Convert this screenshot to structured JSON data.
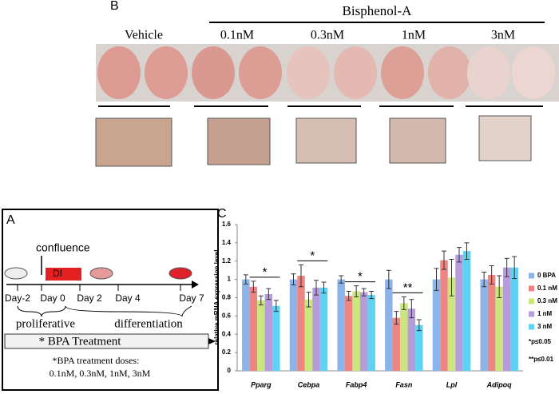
{
  "panel_b": {
    "label": "B",
    "group": "Bisphenol-A",
    "conditions": [
      "Vehicle",
      "0.1nM",
      "0.3nM",
      "1nM",
      "3nM"
    ]
  },
  "panel_a": {
    "label": "A",
    "confluence": "confluence",
    "di": "DI",
    "days": [
      "Day-2",
      "Day 0",
      "Day 2",
      "Day 4",
      "Day 7"
    ],
    "phases": [
      "proliferative",
      "differentiation"
    ],
    "treatment": "* BPA Treatment",
    "note_title": "*BPA treatment doses:",
    "note_doses": "0.1nM, 0.3nM, 1nM, 3nM"
  },
  "chart_data": {
    "type": "bar",
    "panel_label": "C",
    "y_label": "relative mRNA expression level",
    "categories": [
      "Pparg",
      "Cebpa",
      "Fabp4",
      "Fasn",
      "Lpl",
      "Adipoq"
    ],
    "series": [
      {
        "name": "0 BPA",
        "color": "#8db4e8",
        "values": [
          1.0,
          1.0,
          1.0,
          1.0,
          1.0,
          1.0
        ],
        "errors": [
          0.05,
          0.06,
          0.04,
          0.1,
          0.12,
          0.08
        ]
      },
      {
        "name": "0.1 nM",
        "color": "#ef8582",
        "values": [
          0.92,
          1.04,
          0.82,
          0.58,
          1.21,
          1.05
        ],
        "errors": [
          0.06,
          0.12,
          0.05,
          0.07,
          0.1,
          0.1
        ]
      },
      {
        "name": "0.3 nM",
        "color": "#cbe67c",
        "values": [
          0.77,
          0.78,
          0.87,
          0.74,
          1.02,
          0.92
        ],
        "errors": [
          0.05,
          0.08,
          0.06,
          0.07,
          0.2,
          0.12
        ]
      },
      {
        "name": "1 nM",
        "color": "#b79cdb",
        "values": [
          0.84,
          0.91,
          0.86,
          0.68,
          1.27,
          1.13
        ],
        "errors": [
          0.06,
          0.08,
          0.04,
          0.1,
          0.08,
          0.1
        ]
      },
      {
        "name": "3 nM",
        "color": "#5dd2f2",
        "values": [
          0.71,
          0.91,
          0.83,
          0.5,
          1.31,
          1.13
        ],
        "errors": [
          0.06,
          0.06,
          0.04,
          0.06,
          0.09,
          0.12
        ]
      }
    ],
    "annotations": [
      "*",
      "*",
      "*",
      "**"
    ],
    "notes": [
      "*p≤0.05",
      "**p≤0.01"
    ],
    "ylim": [
      0,
      1.6
    ],
    "yticks": [
      0,
      0.2,
      0.4,
      0.6,
      0.8,
      1,
      1.2,
      1.4,
      1.6
    ],
    "grid": false
  }
}
